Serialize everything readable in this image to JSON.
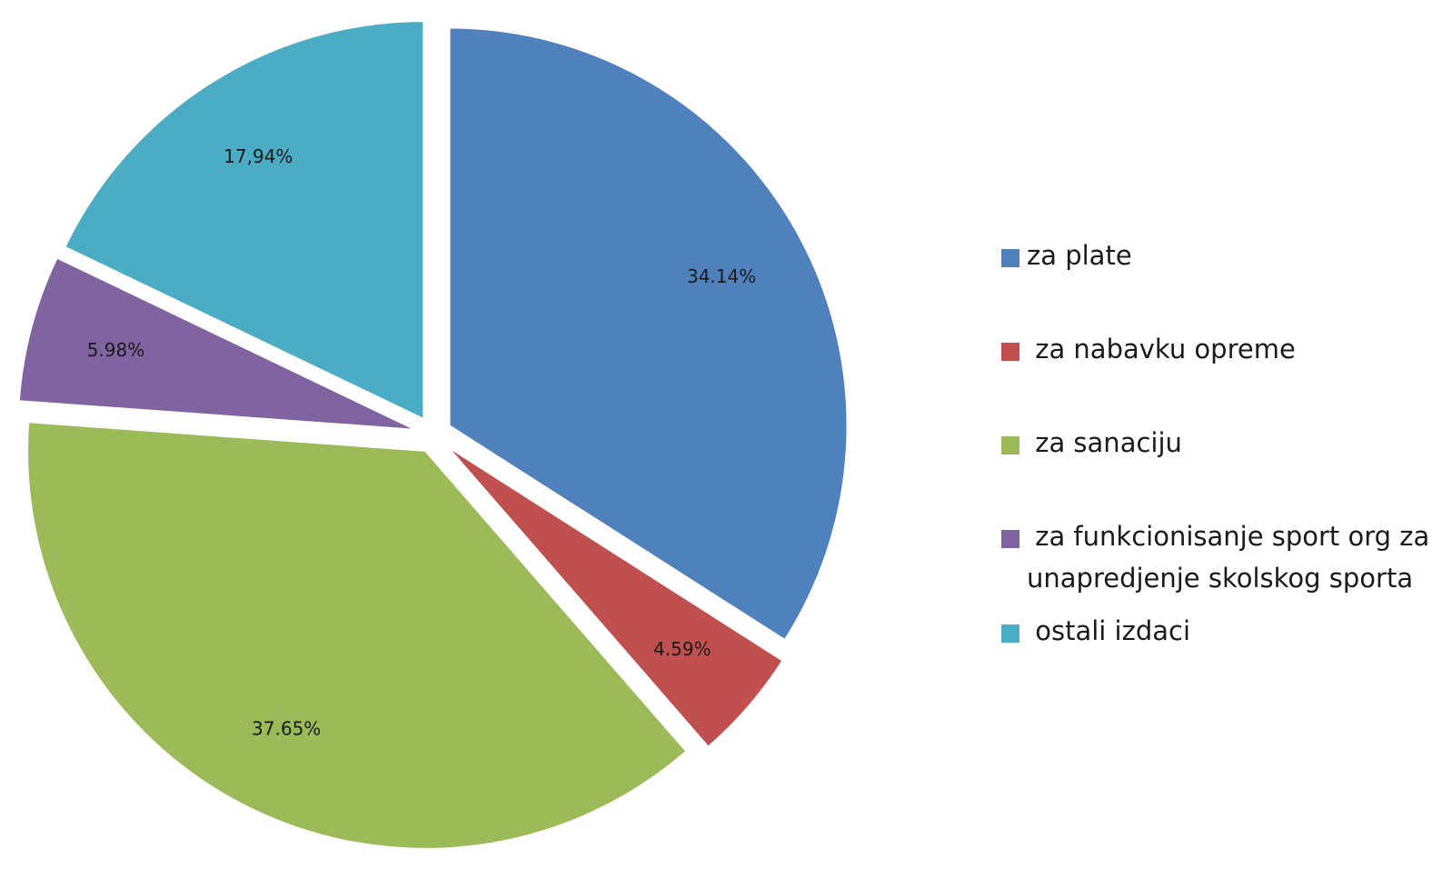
{
  "chart_data": {
    "type": "pie",
    "title": "",
    "legend_position": "right",
    "slices": [
      {
        "name": "za plate",
        "value": 34.14,
        "label": "34.14%",
        "color": "#4F81BD"
      },
      {
        "name": " za nabavku opreme",
        "value": 4.59,
        "label": "4.59%",
        "color": "#C0504D"
      },
      {
        "name": " za sanaciju",
        "value": 37.65,
        "label": "37.65%",
        "color": "#9BBB59"
      },
      {
        "name": " za funkcionisanje sport org za unapredjenje skolskog sporta",
        "value": 5.98,
        "label": "5.98%",
        "color": "#8064A2"
      },
      {
        "name": " ostali izdaci",
        "value": 17.94,
        "label": "17,94%",
        "color": "#4BACC6"
      }
    ]
  }
}
